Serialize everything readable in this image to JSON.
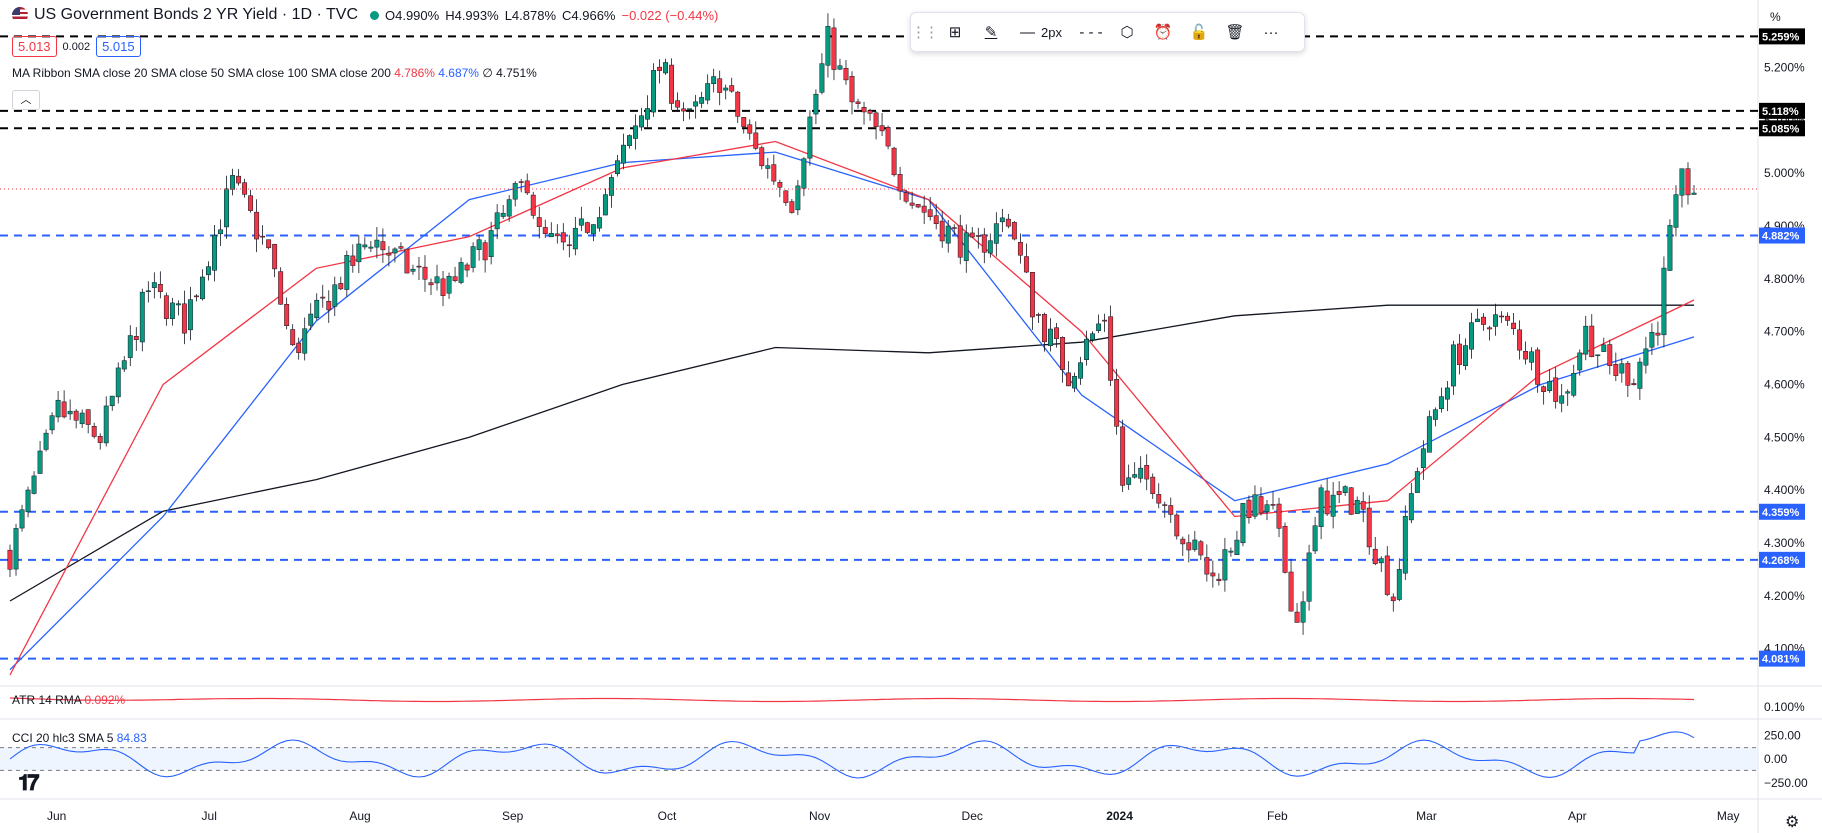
{
  "header": {
    "symbol_title": "US Government Bonds 2 YR Yield · 1D · TVC",
    "ohlc": {
      "open": "O4.990%",
      "high": "H4.993%",
      "low": "L4.878%",
      "close": "C4.966%",
      "change": "−0.022 (−0.44%)"
    },
    "sell_price": "5.013",
    "spread": "0.002",
    "buy_price": "5.015",
    "status_color": "#089981"
  },
  "ma_ribbon": {
    "label": "MA Ribbon SMA close 20 SMA close 50 SMA close 100 SMA close 200",
    "v20": "4.786%",
    "v50": "4.687%",
    "v_other": "4.751%",
    "extra_symbol": "∅",
    "collapse_icon": "chevron-up-icon"
  },
  "toolbar": {
    "items": [
      "drag-handle-icon",
      "layout-add-icon",
      "pencil-icon",
      "line-width",
      "line-style-dashed",
      "settings-hex-icon",
      "alert-add-icon",
      "lock-icon",
      "trash-icon",
      "more-icon"
    ],
    "line_width_label": "2px"
  },
  "axis": {
    "unit_label": "%",
    "right_ticks": [
      "5.200%",
      "5.100%",
      "5.000%",
      "4.900%",
      "4.800%",
      "4.700%",
      "4.600%",
      "4.500%",
      "4.400%",
      "4.300%",
      "4.200%",
      "4.100%"
    ],
    "x_ticks": [
      "Jun",
      "Jul",
      "Aug",
      "Sep",
      "Oct",
      "Nov",
      "Dec",
      "2024",
      "Feb",
      "Mar",
      "Apr",
      "May"
    ]
  },
  "levels": [
    {
      "label": "5.259%",
      "value": 5.259,
      "color": "#000000"
    },
    {
      "label": "5.118%",
      "value": 5.118,
      "color": "#000000"
    },
    {
      "label": "5.085%",
      "value": 5.085,
      "color": "#000000"
    },
    {
      "label": "4.882%",
      "value": 4.882,
      "color": "#2962ff"
    },
    {
      "label": "4.359%",
      "value": 4.359,
      "color": "#2962ff"
    },
    {
      "label": "4.268%",
      "value": 4.268,
      "color": "#2962ff"
    },
    {
      "label": "4.081%",
      "value": 4.081,
      "color": "#2962ff"
    }
  ],
  "atr": {
    "label": "ATR 14 RMA",
    "value": "0.092%",
    "axis_tick": "0.100%",
    "color": "#f23645"
  },
  "cci": {
    "label": "CCI 20 hlc3 SMA 5",
    "value": "84.83",
    "ticks": [
      "250.00",
      "0.00",
      "−250.00"
    ],
    "color": "#2962ff"
  },
  "colors": {
    "up": "#089981",
    "down": "#f23645",
    "sma20": "#f23645",
    "sma50": "#2962ff",
    "sma200": "#131722"
  },
  "chart_data": {
    "type": "candlestick",
    "title": "US Government Bonds 2 YR Yield · 1D · TVC",
    "ylim": [
      4.05,
      5.29
    ],
    "x": [
      "2023-05-24",
      "2024-04-16"
    ],
    "close_path": [
      [
        0,
        4.28
      ],
      [
        8,
        4.55
      ],
      [
        15,
        4.5
      ],
      [
        23,
        4.78
      ],
      [
        29,
        4.72
      ],
      [
        37,
        4.98
      ],
      [
        43,
        4.85
      ],
      [
        47,
        4.66
      ],
      [
        52,
        4.75
      ],
      [
        60,
        4.88
      ],
      [
        66,
        4.82
      ],
      [
        73,
        4.78
      ],
      [
        80,
        4.88
      ],
      [
        86,
        4.99
      ],
      [
        88,
        4.88
      ],
      [
        93,
        4.85
      ],
      [
        100,
        4.98
      ],
      [
        108,
        5.2
      ],
      [
        113,
        5.1
      ],
      [
        118,
        5.18
      ],
      [
        124,
        5.04
      ],
      [
        130,
        4.95
      ],
      [
        136,
        5.25
      ],
      [
        140,
        5.13
      ],
      [
        144,
        5.08
      ],
      [
        150,
        4.95
      ],
      [
        155,
        4.9
      ],
      [
        160,
        4.85
      ],
      [
        166,
        4.92
      ],
      [
        170,
        4.75
      ],
      [
        176,
        4.62
      ],
      [
        182,
        4.73
      ],
      [
        185,
        4.41
      ],
      [
        190,
        4.42
      ],
      [
        196,
        4.3
      ],
      [
        200,
        4.23
      ],
      [
        206,
        4.37
      ],
      [
        210,
        4.35
      ],
      [
        214,
        4.15
      ],
      [
        218,
        4.38
      ],
      [
        224,
        4.38
      ],
      [
        230,
        4.2
      ],
      [
        234,
        4.45
      ],
      [
        240,
        4.65
      ],
      [
        246,
        4.73
      ],
      [
        250,
        4.7
      ],
      [
        254,
        4.63
      ],
      [
        258,
        4.57
      ],
      [
        262,
        4.7
      ],
      [
        266,
        4.63
      ],
      [
        270,
        4.62
      ],
      [
        274,
        4.72
      ],
      [
        276,
        4.88
      ],
      [
        278,
        4.98
      ],
      [
        280,
        4.97
      ]
    ],
    "sma20": [
      4.05,
      4.6,
      4.82,
      4.88,
      5.01,
      5.06,
      4.95,
      4.7,
      4.35,
      4.38,
      4.62,
      4.76
    ],
    "sma50": [
      4.06,
      4.35,
      4.72,
      4.95,
      5.02,
      5.04,
      4.95,
      4.58,
      4.38,
      4.45,
      4.6,
      4.69
    ],
    "sma200": [
      4.19,
      4.36,
      4.42,
      4.5,
      4.6,
      4.67,
      4.66,
      4.68,
      4.73,
      4.75,
      4.75,
      4.75
    ],
    "atr_value": 0.092,
    "cci_value": 84.83
  }
}
